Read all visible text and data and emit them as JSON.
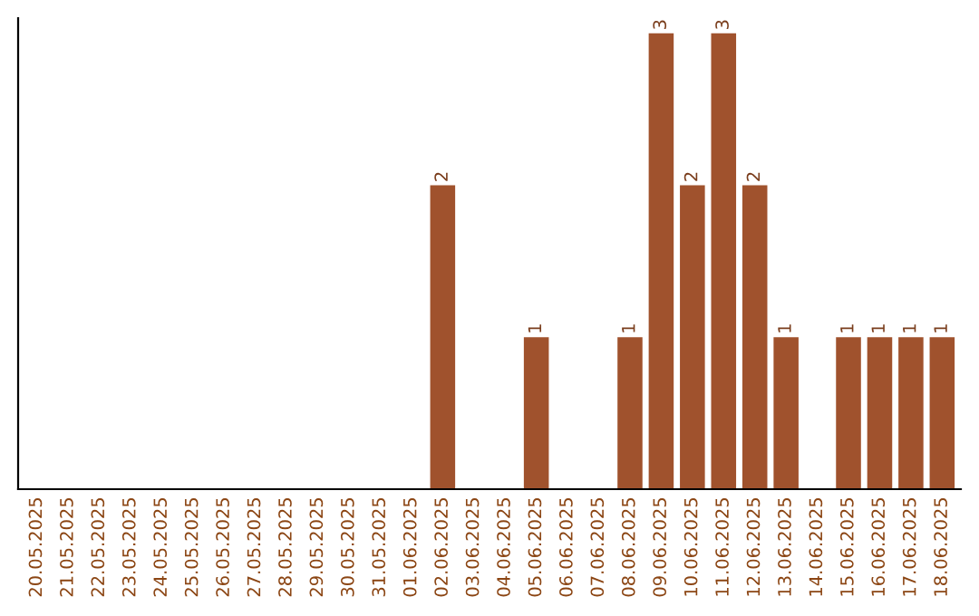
{
  "chart_data": {
    "type": "bar",
    "categories": [
      "20.05.2025",
      "21.05.2025",
      "22.05.2025",
      "23.05.2025",
      "24.05.2025",
      "25.05.2025",
      "26.05.2025",
      "27.05.2025",
      "28.05.2025",
      "29.05.2025",
      "30.05.2025",
      "31.05.2025",
      "01.06.2025",
      "02.06.2025",
      "03.06.2025",
      "04.06.2025",
      "05.06.2025",
      "06.06.2025",
      "07.06.2025",
      "08.06.2025",
      "09.06.2025",
      "10.06.2025",
      "11.06.2025",
      "12.06.2025",
      "13.06.2025",
      "14.06.2025",
      "15.06.2025",
      "16.06.2025",
      "17.06.2025",
      "18.06.2025"
    ],
    "values": [
      null,
      null,
      null,
      null,
      null,
      null,
      null,
      null,
      null,
      null,
      null,
      null,
      null,
      2,
      null,
      null,
      1,
      null,
      null,
      1,
      3,
      2,
      3,
      2,
      1,
      null,
      1,
      1,
      1,
      1
    ],
    "ylim": [
      0,
      3.1
    ],
    "color": "#a0522d",
    "tick_labels": "x",
    "data_labels": true,
    "grid": false,
    "legend": false
  }
}
